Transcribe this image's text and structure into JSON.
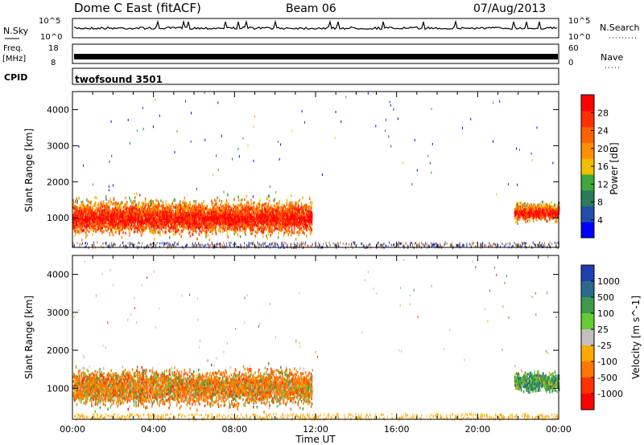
{
  "header": {
    "title": "Dome C East (fitACF)",
    "beam": "Beam 06",
    "date": "07/Aug/2013"
  },
  "strip_panels": {
    "nsky": {
      "label": "N.Sky",
      "y_top": "10^5",
      "y_bottom": "10^0"
    },
    "nsearch": {
      "label": "N.Search",
      "y_top": "10^5",
      "y_bottom": "10^0"
    },
    "freq": {
      "label_top": "Freq.",
      "label_bottom": "[MHz]",
      "y_top": "18",
      "y_bottom": "8"
    },
    "nave": {
      "label": "Nave",
      "y_top": "60",
      "y_bottom": "0"
    },
    "cpid": {
      "label": "CPID",
      "value": "twofsound 3501"
    }
  },
  "colors": {
    "power_scale": [
      "#0000ff",
      "#1f4fa8",
      "#2b7a5a",
      "#3da83d",
      "#f0c000",
      "#ff9000",
      "#ff6000",
      "#ff3000",
      "#ff0000"
    ],
    "velocity_scale": [
      "#1f3fb0",
      "#2b6a8a",
      "#3d9a4a",
      "#66cc33",
      "#c0c0c0",
      "#ffaa00",
      "#ff7700",
      "#ff3300",
      "#ff0000"
    ],
    "gray_ground": "#c0c0c0"
  },
  "chart_data": [
    {
      "type": "heatmap",
      "name": "power",
      "ylabel": "Slant Range [km]",
      "ylim": [
        180,
        4500
      ],
      "yticks": [
        1000,
        2000,
        3000,
        4000
      ],
      "xlim": [
        0,
        24
      ],
      "xticks": [
        "00:00",
        "04:00",
        "08:00",
        "12:00",
        "16:00",
        "20:00",
        "00:00"
      ],
      "colorbar": {
        "label": "Power [dB]",
        "ticks": [
          4,
          8,
          12,
          16,
          20,
          24,
          28
        ],
        "range": [
          0,
          32
        ]
      },
      "scatter_regions": [
        {
          "x": [
            0.0,
            11.8
          ],
          "y": [
            500,
            2600
          ],
          "value_center": 26,
          "description_text": ""
        },
        {
          "x": [
            21.8,
            24.0
          ],
          "y": [
            700,
            1900
          ],
          "value_center": 24
        }
      ]
    },
    {
      "type": "heatmap",
      "name": "velocity",
      "xlabel": "Time UT",
      "ylabel": "Slant Range [km]",
      "ylim": [
        180,
        4500
      ],
      "yticks": [
        1000,
        2000,
        3000,
        4000
      ],
      "xlim": [
        0,
        24
      ],
      "xticks": [
        "00:00",
        "04:00",
        "08:00",
        "12:00",
        "16:00",
        "20:00",
        "00:00"
      ],
      "colorbar": {
        "label": "Velocity [m s^-1]",
        "ticks": [
          1000,
          500,
          100,
          25,
          -25,
          -100,
          -500,
          -1000
        ]
      },
      "scatter_regions": [
        {
          "x": [
            0.0,
            11.8
          ],
          "y": [
            500,
            2500
          ],
          "value_center": -300
        },
        {
          "x": [
            21.8,
            24.0
          ],
          "y": [
            700,
            1900
          ],
          "value_center": 200
        }
      ]
    }
  ]
}
